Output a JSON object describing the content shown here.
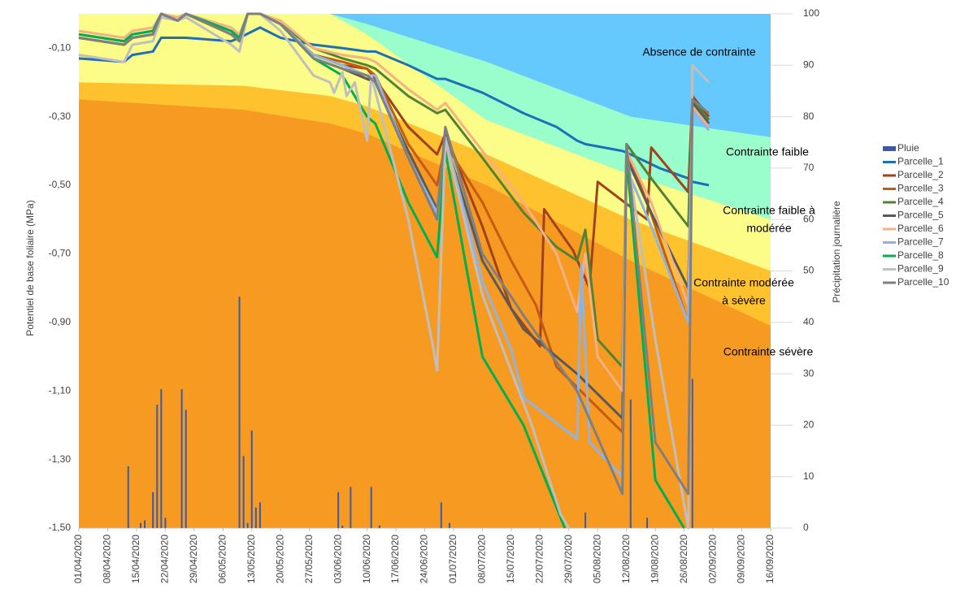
{
  "chart_data": {
    "type": "line",
    "y_label": "Potentiel de base foliaire (MPa)",
    "y2_label": "Précipitation journalière",
    "xlim": [
      "2020-04-01",
      "2020-09-16"
    ],
    "xticks": [
      {
        "value": "2020-04-01",
        "label": "01/04/2020"
      },
      {
        "value": "2020-04-08",
        "label": "08/04/2020"
      },
      {
        "value": "2020-04-15",
        "label": "15/04/2020"
      },
      {
        "value": "2020-04-22",
        "label": "22/04/2020"
      },
      {
        "value": "2020-04-29",
        "label": "29/04/2020"
      },
      {
        "value": "2020-05-06",
        "label": "06/05/2020"
      },
      {
        "value": "2020-05-13",
        "label": "13/05/2020"
      },
      {
        "value": "2020-05-20",
        "label": "20/05/2020"
      },
      {
        "value": "2020-05-27",
        "label": "27/05/2020"
      },
      {
        "value": "2020-06-03",
        "label": "03/06/2020"
      },
      {
        "value": "2020-06-10",
        "label": "10/06/2020"
      },
      {
        "value": "2020-06-17",
        "label": "17/06/2020"
      },
      {
        "value": "2020-06-24",
        "label": "24/06/2020"
      },
      {
        "value": "2020-07-01",
        "label": "01/07/2020"
      },
      {
        "value": "2020-07-08",
        "label": "08/07/2020"
      },
      {
        "value": "2020-07-15",
        "label": "15/07/2020"
      },
      {
        "value": "2020-07-22",
        "label": "22/07/2020"
      },
      {
        "value": "2020-07-29",
        "label": "29/07/2020"
      },
      {
        "value": "2020-08-05",
        "label": "05/08/2020"
      },
      {
        "value": "2020-08-12",
        "label": "12/08/2020"
      },
      {
        "value": "2020-08-19",
        "label": "19/08/2020"
      },
      {
        "value": "2020-08-26",
        "label": "26/08/2020"
      },
      {
        "value": "2020-09-02",
        "label": "02/09/2020"
      },
      {
        "value": "2020-09-09",
        "label": "09/09/2020"
      },
      {
        "value": "2020-09-16",
        "label": "16/09/2020"
      }
    ],
    "ylim": [
      -1.5,
      0
    ],
    "yticks": [
      {
        "value": -0.1,
        "label": "-0,10"
      },
      {
        "value": -0.3,
        "label": "-0,30"
      },
      {
        "value": -0.5,
        "label": "-0,50"
      },
      {
        "value": -0.7,
        "label": "-0,70"
      },
      {
        "value": -0.9,
        "label": "-0,90"
      },
      {
        "value": -1.1,
        "label": "-1,10"
      },
      {
        "value": -1.3,
        "label": "-1,30"
      },
      {
        "value": -1.5,
        "label": "-1,50"
      }
    ],
    "y2lim": [
      0,
      100
    ],
    "y2ticks": [
      0,
      10,
      20,
      30,
      40,
      50,
      60,
      70,
      80,
      90,
      100
    ],
    "zones": {
      "x": [
        "2020-04-01",
        "2020-05-11",
        "2020-06-01",
        "2020-06-10",
        "2020-07-09",
        "2020-08-13",
        "2020-09-16"
      ],
      "areas": [
        {
          "label": [
            "Absence de contrainte"
          ],
          "color": "#66c9fd",
          "lower": [
            0,
            0,
            0,
            -0.03,
            -0.14,
            -0.3,
            -0.36
          ]
        },
        {
          "label": [
            "Contrainte faible"
          ],
          "color": "#99fdcc",
          "lower": [
            0,
            0,
            0,
            -0.06,
            -0.31,
            -0.47,
            -0.6
          ]
        },
        {
          "label": [
            "Contrainte faible à",
            "modérée"
          ],
          "color": "#fcfc88",
          "lower": [
            -0.2,
            -0.21,
            -0.24,
            -0.27,
            -0.41,
            -0.6,
            -0.75
          ]
        },
        {
          "label": [
            "Contrainte modérée",
            "à sèvère"
          ],
          "color": "#fdc22e",
          "lower": [
            -0.25,
            -0.28,
            -0.32,
            -0.35,
            -0.5,
            -0.72,
            -0.91
          ]
        },
        {
          "label": [
            "Contrainte sévère"
          ],
          "color": "#f79a22"
        }
      ]
    },
    "series": [
      {
        "name": "Pluie",
        "type": "bar",
        "axis": "y2",
        "color": "#3c5aa8",
        "x": [
          "2020-04-13",
          "2020-04-16",
          "2020-04-17",
          "2020-04-19",
          "2020-04-20",
          "2020-04-21",
          "2020-04-22",
          "2020-04-26",
          "2020-04-27",
          "2020-05-10",
          "2020-05-11",
          "2020-05-12",
          "2020-05-13",
          "2020-05-14",
          "2020-05-15",
          "2020-06-03",
          "2020-06-04",
          "2020-06-06",
          "2020-06-11",
          "2020-06-13",
          "2020-06-28",
          "2020-06-30",
          "2020-08-02",
          "2020-08-13",
          "2020-08-17",
          "2020-08-28"
        ],
        "values": [
          12,
          1,
          1.5,
          7,
          24,
          27,
          2,
          27,
          23,
          45,
          14,
          1,
          19,
          4,
          5,
          7,
          0.5,
          8,
          8,
          0.5,
          5,
          1,
          3,
          25,
          2,
          29
        ]
      },
      {
        "name": "Parcelle_1",
        "color": "#1f6fb8",
        "x": [
          "2020-04-01",
          "2020-04-12",
          "2020-04-14",
          "2020-04-19",
          "2020-04-21",
          "2020-04-27",
          "2020-05-08",
          "2020-05-10",
          "2020-05-15",
          "2020-05-20",
          "2020-05-28",
          "2020-06-04",
          "2020-06-10",
          "2020-06-12",
          "2020-06-20",
          "2020-06-27",
          "2020-06-29",
          "2020-07-08",
          "2020-07-18",
          "2020-07-26",
          "2020-07-31",
          "2020-08-02",
          "2020-08-11",
          "2020-08-13",
          "2020-08-20",
          "2020-08-27",
          "2020-08-28",
          "2020-09-01"
        ],
        "values": [
          -0.13,
          -0.14,
          -0.12,
          -0.11,
          -0.07,
          -0.07,
          -0.08,
          -0.07,
          -0.04,
          -0.07,
          -0.09,
          -0.1,
          -0.11,
          -0.11,
          -0.15,
          -0.19,
          -0.19,
          -0.23,
          -0.29,
          -0.33,
          -0.37,
          -0.38,
          -0.4,
          -0.41,
          -0.45,
          -0.48,
          -0.49,
          -0.5
        ]
      },
      {
        "name": "Parcelle_2",
        "color": "#a0421b",
        "x": [
          "2020-04-01",
          "2020-04-12",
          "2020-04-14",
          "2020-04-19",
          "2020-04-21",
          "2020-04-25",
          "2020-04-27",
          "2020-05-08",
          "2020-05-10",
          "2020-05-12",
          "2020-05-15",
          "2020-05-20",
          "2020-05-28",
          "2020-06-04",
          "2020-06-10",
          "2020-06-12",
          "2020-06-20",
          "2020-06-27",
          "2020-06-29",
          "2020-07-08",
          "2020-07-15",
          "2020-07-22",
          "2020-07-23",
          "2020-07-30",
          "2020-08-03",
          "2020-08-05",
          "2020-08-17",
          "2020-08-18",
          "2020-08-27",
          "2020-08-28",
          "2020-09-01"
        ],
        "values": [
          -0.06,
          -0.08,
          -0.06,
          -0.05,
          0,
          -0.02,
          0,
          -0.05,
          -0.07,
          0,
          0,
          -0.03,
          -0.12,
          -0.15,
          -0.16,
          -0.19,
          -0.33,
          -0.41,
          -0.35,
          -0.62,
          -0.86,
          -0.97,
          -0.57,
          -0.69,
          -0.8,
          -0.49,
          -0.6,
          -0.39,
          -0.52,
          -0.24,
          -0.3
        ]
      },
      {
        "name": "Parcelle_3",
        "color": "#c55a11",
        "x": [
          "2020-04-01",
          "2020-04-12",
          "2020-04-14",
          "2020-04-19",
          "2020-04-21",
          "2020-04-25",
          "2020-04-27",
          "2020-05-08",
          "2020-05-10",
          "2020-05-12",
          "2020-05-15",
          "2020-05-20",
          "2020-05-28",
          "2020-06-04",
          "2020-06-10",
          "2020-06-12",
          "2020-06-20",
          "2020-06-27",
          "2020-06-29",
          "2020-07-08",
          "2020-07-15",
          "2020-07-21",
          "2020-07-26",
          "2020-08-11",
          "2020-08-12",
          "2020-08-17",
          "2020-08-27",
          "2020-08-28",
          "2020-09-01"
        ],
        "values": [
          -0.06,
          -0.08,
          -0.06,
          -0.05,
          0,
          -0.02,
          0,
          -0.05,
          -0.07,
          0,
          0,
          -0.03,
          -0.12,
          -0.14,
          -0.16,
          -0.18,
          -0.38,
          -0.5,
          -0.38,
          -0.55,
          -0.72,
          -0.85,
          -1.03,
          -1.22,
          -0.4,
          -0.55,
          -0.9,
          -0.26,
          -0.33
        ]
      },
      {
        "name": "Parcelle_4",
        "color": "#548235",
        "x": [
          "2020-04-01",
          "2020-04-12",
          "2020-04-14",
          "2020-04-19",
          "2020-04-21",
          "2020-04-25",
          "2020-04-27",
          "2020-05-08",
          "2020-05-10",
          "2020-05-12",
          "2020-05-15",
          "2020-05-20",
          "2020-05-28",
          "2020-06-04",
          "2020-06-10",
          "2020-06-12",
          "2020-06-20",
          "2020-06-27",
          "2020-06-29",
          "2020-07-08",
          "2020-07-18",
          "2020-07-26",
          "2020-07-31",
          "2020-08-02",
          "2020-08-05",
          "2020-08-11",
          "2020-08-12",
          "2020-08-18",
          "2020-08-27",
          "2020-08-28",
          "2020-09-01"
        ],
        "values": [
          -0.07,
          -0.09,
          -0.07,
          -0.06,
          0,
          -0.02,
          0,
          -0.06,
          -0.08,
          0,
          0,
          -0.03,
          -0.1,
          -0.13,
          -0.15,
          -0.16,
          -0.24,
          -0.29,
          -0.28,
          -0.42,
          -0.58,
          -0.68,
          -0.72,
          -0.63,
          -0.95,
          -1.03,
          -0.38,
          -0.48,
          -0.62,
          -0.25,
          -0.31
        ]
      },
      {
        "name": "Parcelle_5",
        "color": "#595959",
        "x": [
          "2020-04-01",
          "2020-04-12",
          "2020-04-14",
          "2020-04-19",
          "2020-04-21",
          "2020-04-25",
          "2020-04-27",
          "2020-05-08",
          "2020-05-10",
          "2020-05-12",
          "2020-05-15",
          "2020-05-20",
          "2020-05-28",
          "2020-06-04",
          "2020-06-10",
          "2020-06-12",
          "2020-06-20",
          "2020-06-27",
          "2020-06-29",
          "2020-07-08",
          "2020-07-18",
          "2020-07-31",
          "2020-08-11",
          "2020-08-12",
          "2020-08-18",
          "2020-08-27",
          "2020-08-28",
          "2020-09-01"
        ],
        "values": [
          -0.07,
          -0.09,
          -0.07,
          -0.06,
          0,
          -0.02,
          0,
          -0.06,
          -0.08,
          0,
          0,
          -0.03,
          -0.13,
          -0.16,
          -0.19,
          -0.2,
          -0.4,
          -0.57,
          -0.37,
          -0.72,
          -0.92,
          -1.05,
          -1.18,
          -0.42,
          -0.58,
          -0.8,
          -0.26,
          -0.32
        ]
      },
      {
        "name": "Parcelle_6",
        "color": "#f4b183",
        "x": [
          "2020-04-01",
          "2020-04-12",
          "2020-04-14",
          "2020-04-19",
          "2020-04-21",
          "2020-04-25",
          "2020-04-27",
          "2020-05-08",
          "2020-05-10",
          "2020-05-12",
          "2020-05-15",
          "2020-05-20",
          "2020-05-28",
          "2020-06-04",
          "2020-06-10",
          "2020-06-12",
          "2020-06-20",
          "2020-06-27",
          "2020-06-29",
          "2020-07-08",
          "2020-07-18",
          "2020-07-26",
          "2020-07-31",
          "2020-08-02",
          "2020-08-05",
          "2020-08-11",
          "2020-08-12",
          "2020-08-18",
          "2020-08-27",
          "2020-08-28",
          "2020-09-01"
        ],
        "values": [
          -0.05,
          -0.07,
          -0.05,
          -0.04,
          0,
          -0.01,
          0,
          -0.04,
          -0.06,
          0,
          0,
          -0.02,
          -0.1,
          -0.12,
          -0.13,
          -0.14,
          -0.22,
          -0.28,
          -0.26,
          -0.4,
          -0.55,
          -0.7,
          -0.87,
          -0.7,
          -1,
          -1.1,
          -0.4,
          -0.55,
          -0.85,
          -0.27,
          -0.33
        ]
      },
      {
        "name": "Parcelle_7",
        "color": "#8fb4e3",
        "x": [
          "2020-04-01",
          "2020-04-12",
          "2020-04-14",
          "2020-04-19",
          "2020-04-21",
          "2020-04-25",
          "2020-04-27",
          "2020-05-08",
          "2020-05-10",
          "2020-05-12",
          "2020-05-15",
          "2020-05-20",
          "2020-05-28",
          "2020-06-04",
          "2020-06-10",
          "2020-06-12",
          "2020-06-20",
          "2020-06-27",
          "2020-06-29",
          "2020-07-08",
          "2020-07-15",
          "2020-07-18",
          "2020-07-31",
          "2020-08-01",
          "2020-08-03",
          "2020-08-11",
          "2020-08-12",
          "2020-08-18",
          "2020-08-27",
          "2020-08-28",
          "2020-09-01"
        ],
        "values": [
          -0.06,
          -0.08,
          -0.06,
          -0.05,
          0,
          -0.02,
          0,
          -0.05,
          -0.07,
          0,
          0,
          -0.03,
          -0.12,
          -0.15,
          -0.18,
          -0.18,
          -0.42,
          -0.58,
          -0.36,
          -0.78,
          -0.98,
          -1.12,
          -1.24,
          -0.73,
          -1.25,
          -1.35,
          -0.45,
          -0.62,
          -0.9,
          -0.28,
          -0.34
        ]
      },
      {
        "name": "Parcelle_8",
        "color": "#00b050",
        "x": [
          "2020-04-01",
          "2020-04-12",
          "2020-04-14",
          "2020-04-19",
          "2020-04-21",
          "2020-04-25",
          "2020-04-27",
          "2020-05-08",
          "2020-05-10",
          "2020-05-12",
          "2020-05-15",
          "2020-05-20",
          "2020-05-28",
          "2020-06-04",
          "2020-06-10",
          "2020-06-12",
          "2020-06-20",
          "2020-06-27",
          "2020-06-29",
          "2020-07-08",
          "2020-07-18",
          "2020-07-28",
          "2020-08-05",
          "2020-08-12",
          "2020-08-19",
          "2020-08-26"
        ],
        "values": [
          -0.06,
          -0.08,
          -0.06,
          -0.05,
          0,
          -0.02,
          0,
          -0.05,
          -0.07,
          0,
          0,
          -0.03,
          -0.13,
          -0.18,
          -0.3,
          -0.32,
          -0.55,
          -0.71,
          -0.4,
          -1,
          -1.2,
          -1.5,
          null,
          -0.42,
          -1.36,
          -1.5
        ]
      },
      {
        "name": "Parcelle_9",
        "color": "#bfbfbf",
        "x": [
          "2020-04-01",
          "2020-04-12",
          "2020-04-14",
          "2020-04-19",
          "2020-04-21",
          "2020-04-25",
          "2020-04-27",
          "2020-05-08",
          "2020-05-10",
          "2020-05-12",
          "2020-05-15",
          "2020-05-20",
          "2020-05-28",
          "2020-06-01",
          "2020-06-02",
          "2020-06-04",
          "2020-06-05",
          "2020-06-07",
          "2020-06-10",
          "2020-06-11",
          "2020-06-20",
          "2020-06-26",
          "2020-06-27",
          "2020-06-29",
          "2020-07-08",
          "2020-07-20",
          "2020-07-27",
          "2020-07-29",
          "2020-08-05",
          "2020-08-12",
          "2020-08-19",
          "2020-08-27",
          "2020-08-28",
          "2020-09-01"
        ],
        "values": [
          -0.12,
          -0.14,
          -0.09,
          -0.08,
          -0.01,
          -0.02,
          -0.01,
          -0.09,
          -0.11,
          0,
          0,
          -0.05,
          -0.18,
          -0.2,
          -0.23,
          -0.17,
          -0.24,
          -0.2,
          -0.37,
          -0.18,
          -0.6,
          -0.97,
          -1.04,
          -0.37,
          -0.82,
          -1.2,
          -1.46,
          -1.5,
          null,
          -0.4,
          -0.95,
          -1.5,
          -0.15,
          -0.2
        ]
      },
      {
        "name": "Parcelle_10",
        "color": "#7f7f7f",
        "x": [
          "2020-04-01",
          "2020-04-12",
          "2020-04-14",
          "2020-04-19",
          "2020-04-21",
          "2020-04-25",
          "2020-04-27",
          "2020-05-08",
          "2020-05-10",
          "2020-05-12",
          "2020-05-15",
          "2020-05-20",
          "2020-05-28",
          "2020-06-04",
          "2020-06-10",
          "2020-06-12",
          "2020-06-20",
          "2020-06-27",
          "2020-06-29",
          "2020-07-08",
          "2020-07-18",
          "2020-07-31",
          "2020-08-11",
          "2020-08-12",
          "2020-08-19",
          "2020-08-27",
          "2020-08-28",
          "2020-09-01"
        ],
        "values": [
          -0.07,
          -0.09,
          -0.07,
          -0.06,
          0,
          -0.02,
          0,
          -0.06,
          -0.08,
          0,
          0,
          -0.03,
          -0.13,
          -0.16,
          -0.18,
          -0.2,
          -0.42,
          -0.6,
          -0.33,
          -0.7,
          -0.88,
          -1.1,
          -1.4,
          -0.38,
          -1.25,
          -1.4,
          -0.25,
          -0.29
        ]
      }
    ]
  }
}
